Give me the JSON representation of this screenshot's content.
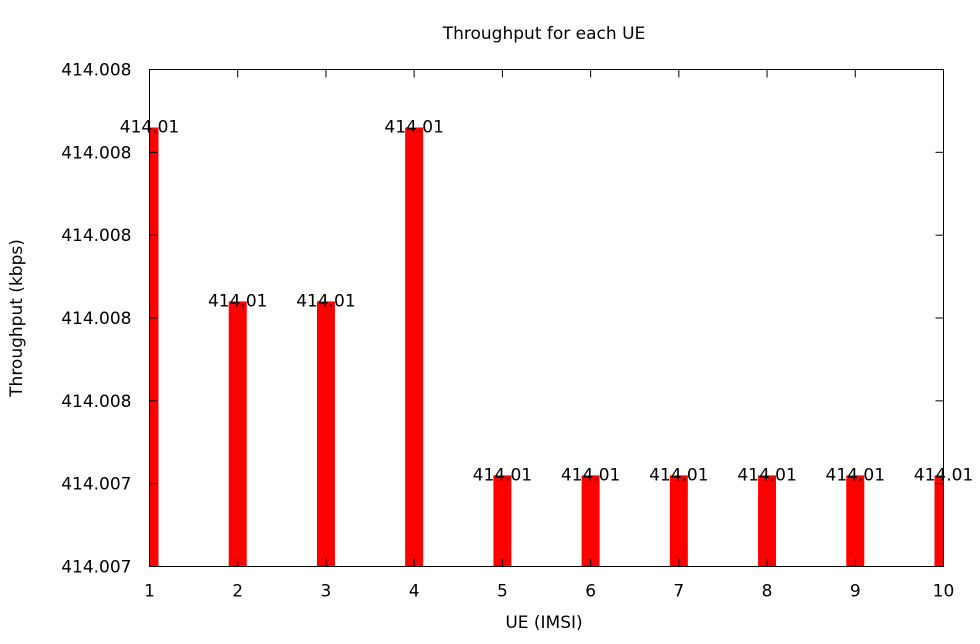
{
  "chart_data": {
    "type": "bar",
    "title": "Throughput for each UE",
    "xlabel": "UE (IMSI)",
    "ylabel": "Throughput (kbps)",
    "x_ticks": [
      "1",
      "2",
      "3",
      "4",
      "5",
      "6",
      "7",
      "8",
      "9",
      "10"
    ],
    "y_tick_labels": [
      "414.007",
      "414.007",
      "414.008",
      "414.008",
      "414.008",
      "414.008",
      "414.008"
    ],
    "ylim": [
      414.0072,
      414.0084
    ],
    "y_tick_values": [
      414.0072,
      414.0074,
      414.0076,
      414.0078,
      414.008,
      414.0082,
      414.0084
    ],
    "x": [
      1,
      2,
      3,
      4,
      5,
      6,
      7,
      8,
      9,
      10
    ],
    "values": [
      414.00826,
      414.00784,
      414.00784,
      414.00826,
      414.00742,
      414.00742,
      414.00742,
      414.00742,
      414.00742,
      414.00742
    ],
    "data_labels": [
      "414.01",
      "414.01",
      "414.01",
      "414.01",
      "414.01",
      "414.01",
      "414.01",
      "414.01",
      "414.01",
      "414.01"
    ],
    "bar_color": "#ff0000",
    "grid": false,
    "legend": "none"
  }
}
